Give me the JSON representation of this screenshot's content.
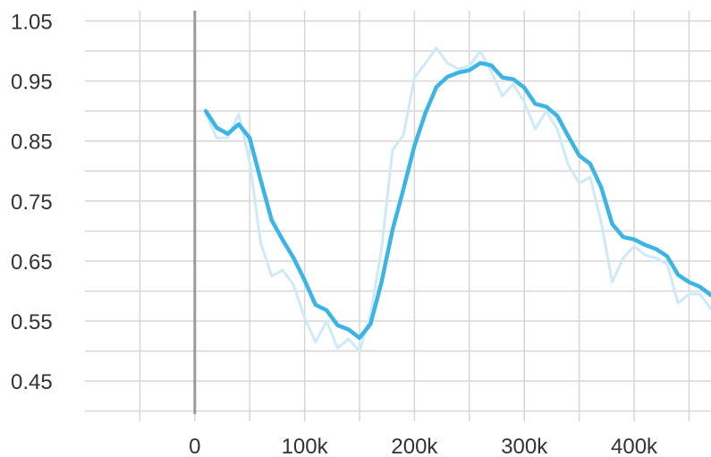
{
  "chart_data": {
    "type": "line",
    "title": "",
    "xlabel": "",
    "ylabel": "",
    "grid": true,
    "xlim": [
      -100000,
      470000
    ],
    "ylim": [
      0.395,
      1.085
    ],
    "x_ticks": [
      0,
      100000,
      200000,
      300000,
      400000
    ],
    "x_tick_labels": [
      "0",
      "100k",
      "200k",
      "300k",
      "400k"
    ],
    "x_minor_ticks": [
      -50000,
      50000,
      150000,
      250000,
      350000,
      450000
    ],
    "y_ticks": [
      0.45,
      0.55,
      0.65,
      0.75,
      0.85,
      0.95,
      1.05
    ],
    "y_tick_labels": [
      "0.45",
      "0.55",
      "0.65",
      "0.75",
      "0.85",
      "0.95",
      "1.05"
    ],
    "y_minor_ticks": [
      0.4,
      0.5,
      0.6,
      0.7,
      0.8,
      0.9,
      1.0
    ],
    "colors": {
      "smoothed": "#3cb4e5",
      "raw": "#cfeaf7",
      "grid": "#d6d6d6",
      "zero_axis": "#9a9a9a",
      "text": "#333333"
    },
    "series": [
      {
        "role": "raw",
        "x": [
          10000,
          20000,
          30000,
          40000,
          50000,
          60000,
          70000,
          80000,
          90000,
          100000,
          110000,
          120000,
          130000,
          140000,
          150000,
          160000,
          170000,
          180000,
          190000,
          200000,
          210000,
          220000,
          230000,
          240000,
          250000,
          260000,
          270000,
          280000,
          290000,
          300000,
          310000,
          320000,
          330000,
          340000,
          350000,
          360000,
          370000,
          380000,
          390000,
          400000,
          410000,
          420000,
          430000,
          440000,
          450000,
          460000,
          470000
        ],
        "values": [
          0.895,
          0.855,
          0.855,
          0.895,
          0.815,
          0.68,
          0.625,
          0.635,
          0.61,
          0.555,
          0.515,
          0.55,
          0.505,
          0.52,
          0.5,
          0.56,
          0.67,
          0.835,
          0.86,
          0.955,
          0.98,
          1.005,
          0.98,
          0.97,
          0.975,
          1.0,
          0.965,
          0.925,
          0.945,
          0.915,
          0.87,
          0.9,
          0.87,
          0.81,
          0.78,
          0.79,
          0.715,
          0.615,
          0.655,
          0.675,
          0.66,
          0.655,
          0.645,
          0.58,
          0.595,
          0.595,
          0.57
        ]
      },
      {
        "role": "smoothed",
        "x": [
          10000,
          20000,
          30000,
          40000,
          50000,
          60000,
          70000,
          80000,
          90000,
          100000,
          110000,
          120000,
          130000,
          140000,
          150000,
          160000,
          170000,
          180000,
          190000,
          200000,
          210000,
          220000,
          230000,
          240000,
          250000,
          260000,
          270000,
          280000,
          290000,
          300000,
          310000,
          320000,
          330000,
          340000,
          350000,
          360000,
          370000,
          380000,
          390000,
          400000,
          410000,
          420000,
          430000,
          440000,
          450000,
          460000,
          470000
        ],
        "values": [
          0.9,
          0.872,
          0.862,
          0.878,
          0.855,
          0.785,
          0.718,
          0.685,
          0.655,
          0.618,
          0.577,
          0.568,
          0.543,
          0.536,
          0.522,
          0.545,
          0.615,
          0.702,
          0.77,
          0.842,
          0.897,
          0.94,
          0.957,
          0.964,
          0.968,
          0.98,
          0.976,
          0.956,
          0.953,
          0.939,
          0.912,
          0.907,
          0.892,
          0.858,
          0.826,
          0.812,
          0.773,
          0.712,
          0.69,
          0.686,
          0.677,
          0.67,
          0.658,
          0.627,
          0.615,
          0.607,
          0.593
        ]
      }
    ]
  }
}
